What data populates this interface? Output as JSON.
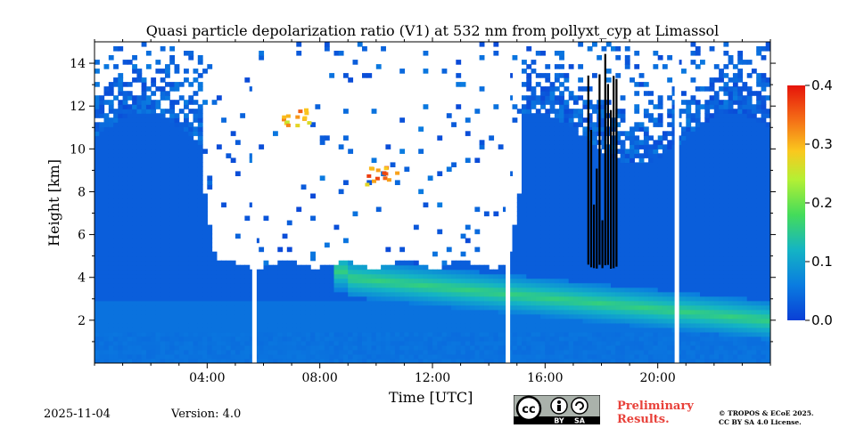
{
  "chart_data": {
    "type": "heatmap",
    "title": "Quasi particle depolarization ratio (V1) at 532 nm from pollyxt_cyp at Limassol",
    "xlabel": "Time [UTC]",
    "ylabel": "Height [km]",
    "xlim_hours": [
      0,
      24
    ],
    "ylim_km": [
      0,
      15
    ],
    "x_ticks": [
      {
        "v": 4,
        "label": "04:00"
      },
      {
        "v": 8,
        "label": "08:00"
      },
      {
        "v": 12,
        "label": "12:00"
      },
      {
        "v": 16,
        "label": "16:00"
      },
      {
        "v": 20,
        "label": "20:00"
      }
    ],
    "y_ticks": [
      {
        "v": 2,
        "label": "2"
      },
      {
        "v": 4,
        "label": "4"
      },
      {
        "v": 6,
        "label": "6"
      },
      {
        "v": 8,
        "label": "8"
      },
      {
        "v": 10,
        "label": "10"
      },
      {
        "v": 12,
        "label": "12"
      },
      {
        "v": 14,
        "label": "14"
      }
    ],
    "colorbar": {
      "min": 0.0,
      "max": 0.4,
      "ticks": [
        {
          "v": 0.0,
          "label": "0.0"
        },
        {
          "v": 0.1,
          "label": "0.1"
        },
        {
          "v": 0.2,
          "label": "0.2"
        },
        {
          "v": 0.3,
          "label": "0.3"
        },
        {
          "v": 0.4,
          "label": "0.4"
        }
      ],
      "colors": [
        "#0a3fd6",
        "#0a7ce0",
        "#14b4c4",
        "#44dc5a",
        "#b4f034",
        "#fac81e",
        "#f46a16",
        "#e6140a"
      ]
    },
    "data_gaps_hours": [
      5.6,
      14.6,
      20.6
    ],
    "features": [
      {
        "name": "daytime signal-free region (noise)",
        "t_start": 4.0,
        "t_end": 15.0,
        "above_km": 4.6
      },
      {
        "name": "aerosol layer",
        "t_start": 9.0,
        "t_end": 24.0,
        "height_km_start": 4.0,
        "height_km_end": 2.0,
        "value": 0.15
      },
      {
        "name": "cirrus / dust patch",
        "time": 7.2,
        "height_km": 11.5,
        "value": 0.35
      },
      {
        "name": "high depolarization patch",
        "time": 10.2,
        "height_km": 8.8,
        "value": 0.38
      },
      {
        "name": "cloud",
        "t_start": 17.5,
        "t_end": 18.6,
        "height_km_start": 4.4,
        "height_km_end": 14.0
      }
    ]
  },
  "footer": {
    "date": "2025-11-04",
    "version": "Version: 4.0",
    "license_badge": {
      "cc": "cc",
      "by": "BY",
      "sa": "SA"
    },
    "preliminary_line1": "Preliminary",
    "preliminary_line2": "Results.",
    "copyright_line1": "© TROPOS & ECoE 2025.",
    "copyright_line2": "CC BY SA 4.0 License."
  }
}
